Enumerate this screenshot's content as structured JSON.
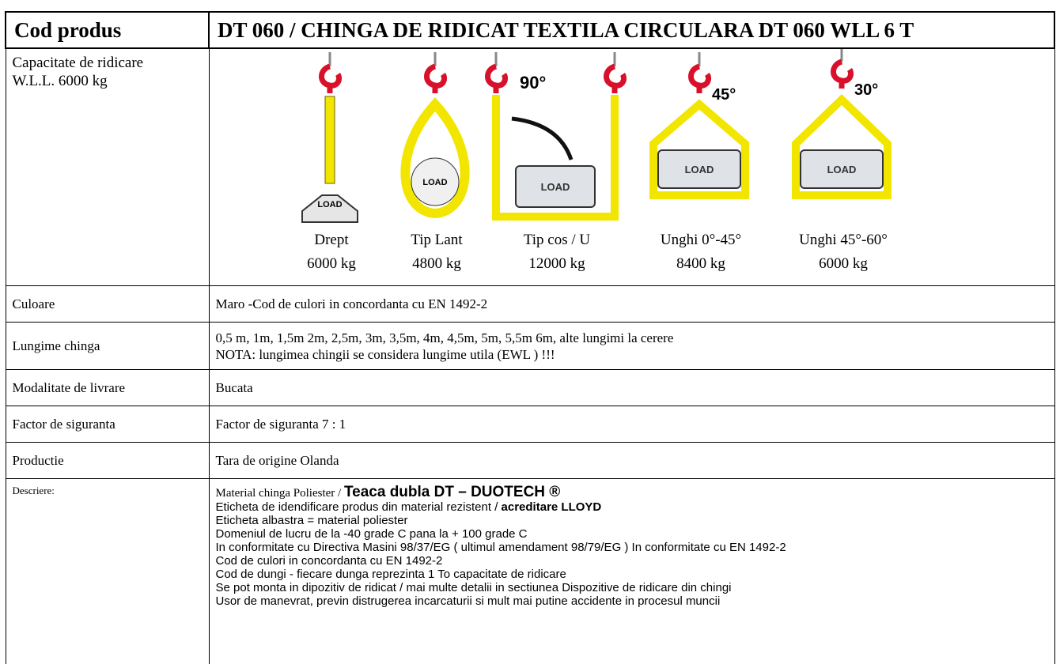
{
  "header": {
    "label": "Cod produs",
    "title": "DT 060 / CHINGA DE RIDICAT TEXTILA CIRCULARA DT 060 WLL 6 T"
  },
  "capacity": {
    "label_lines": [
      "Capacitate de ridicare",
      "W.L.L. 6000 kg"
    ],
    "slings": [
      {
        "name": "Drept",
        "load": "6000 kg",
        "tag": "LOAD"
      },
      {
        "name": "Tip Lant",
        "load": "4800 kg",
        "tag": "LOAD"
      },
      {
        "name": "Tip cos / U",
        "load": "12000 kg",
        "tag": "LOAD",
        "angle": "90°"
      },
      {
        "name": "Unghi 0°-45°",
        "load": "8400 kg",
        "tag": "LOAD",
        "angle": "45°"
      },
      {
        "name": "Unghi 45°-60°",
        "load": "6000 kg",
        "tag": "LOAD",
        "angle": "30°"
      }
    ]
  },
  "rows": [
    {
      "label": "Culoare",
      "lines": [
        "Maro -Cod de culori in concordanta cu EN 1492-2"
      ]
    },
    {
      "label": "Lungime chinga",
      "lines": [
        "0,5 m, 1m, 1,5m 2m, 2,5m, 3m, 3,5m, 4m, 4,5m, 5m, 5,5m 6m,  alte lungimi la cerere",
        "NOTA: lungimea chingii se considera lungime utila (EWL ) !!!"
      ]
    },
    {
      "label": "Modalitate de livrare",
      "lines": [
        "Bucata"
      ]
    },
    {
      "label": "Factor de siguranta",
      "lines": [
        "Factor de siguranta 7 : 1"
      ]
    },
    {
      "label": "Productie",
      "lines": [
        "Tara de origine Olanda"
      ]
    }
  ],
  "description": {
    "label": "Descriere:",
    "lines": [
      {
        "text": "Material chinga Poliester / ",
        "emphasis": "Teaca dubla DT – DUOTECH ®"
      },
      {
        "text": "Eticheta de idendificare produs din material rezistent / ",
        "emphasis": "acreditare LLOYD"
      },
      {
        "text": "Eticheta albastra = material poliester"
      },
      {
        "text": "Domeniul de lucru de la -40 grade C pana la + 100 grade C"
      },
      {
        "text": "In conformitate cu Directiva Masini 98/37/EG ( ultimul amendament 98/79/EG ) In conformitate cu EN 1492-2"
      },
      {
        "text": "Cod de culori in concordanta cu EN 1492-2"
      },
      {
        "text": "Cod de dungi - fiecare dunga reprezinta 1 To capacitate de ridicare"
      },
      {
        "text": "Se pot monta in dipozitiv de ridicat / mai multe detalii in sectiunea Dispozitive de ridicare din chingi"
      },
      {
        "text": "Usor de manevrat, previn distrugerea incarcaturii si mult mai putine accidente in procesul muncii"
      }
    ]
  }
}
